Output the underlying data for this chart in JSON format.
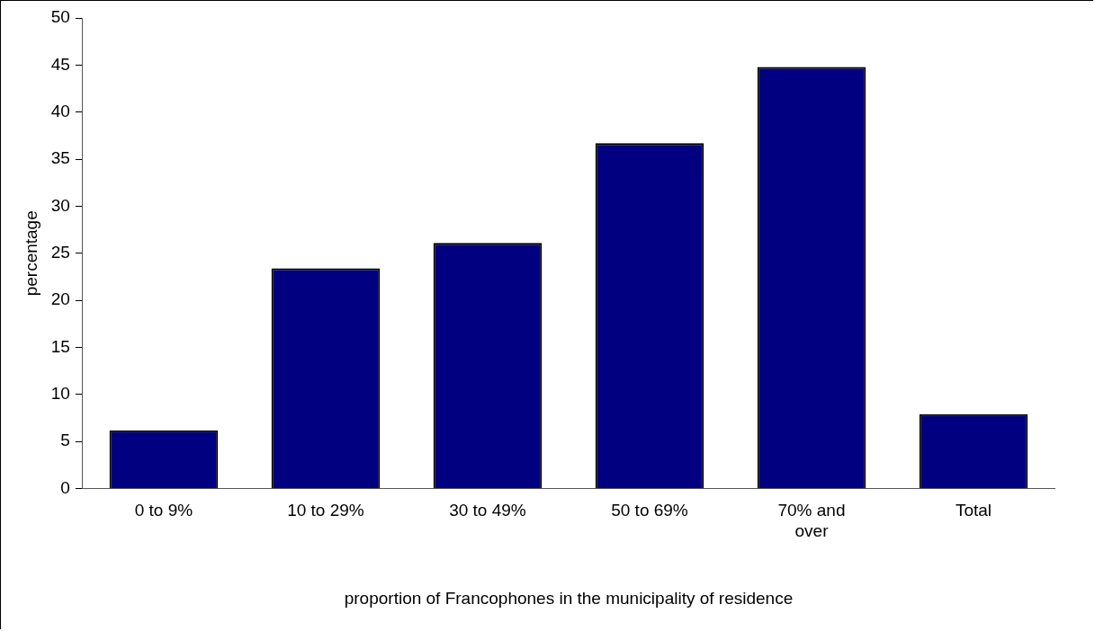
{
  "chart_data": {
    "type": "bar",
    "xlabel": "proportion of Francophones in the municipality of residence",
    "ylabel": "percentage",
    "categories": [
      "0 to 9%",
      "10 to 29%",
      "30 to 49%",
      "50 to 69%",
      "70% and over",
      "Total"
    ],
    "values": [
      6.2,
      23.4,
      26.1,
      36.7,
      44.8,
      7.9
    ],
    "color": "#000080",
    "ylim": [
      0,
      50
    ],
    "yticks": [
      0,
      5,
      10,
      15,
      20,
      25,
      30,
      35,
      40,
      45,
      50
    ],
    "grid": false,
    "legend": false
  }
}
